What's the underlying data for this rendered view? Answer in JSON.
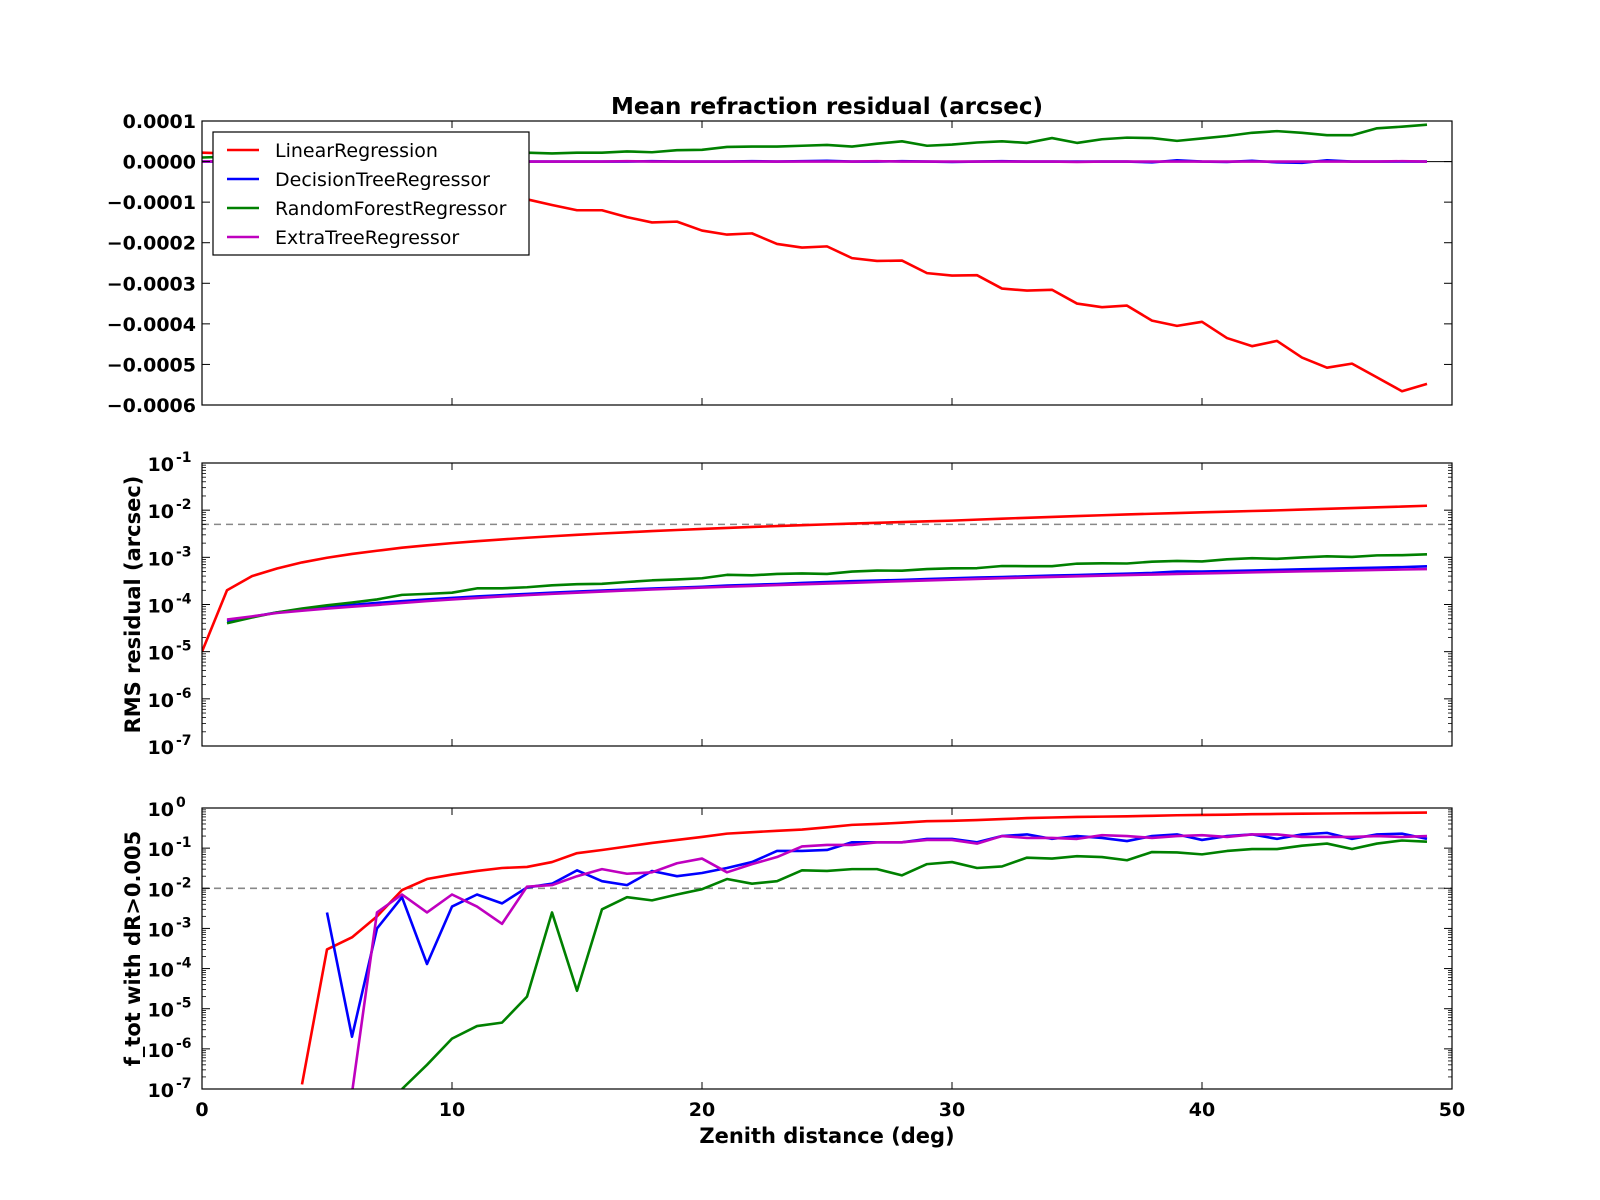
{
  "chart_data": [
    {
      "type": "line",
      "title": "Mean refraction residual (arcsec)",
      "ylabel": "",
      "xlabel": "",
      "yscale": "linear",
      "xlim": [
        0,
        50
      ],
      "ylim": [
        -0.0006,
        0.0001
      ],
      "yticks": [
        "0.0001",
        "0.0000",
        "−0.0001",
        "−0.0002",
        "−0.0003",
        "−0.0004",
        "−0.0005",
        "−0.0006"
      ],
      "ytick_values": [
        0.0001,
        0.0,
        -0.0001,
        -0.0002,
        -0.0003,
        -0.0004,
        -0.0005,
        -0.0006
      ],
      "zero_line": true,
      "legend_position": "upper-left",
      "x": [
        0,
        1,
        2,
        3,
        4,
        5,
        6,
        7,
        8,
        9,
        10,
        11,
        12,
        13,
        14,
        15,
        16,
        17,
        18,
        19,
        20,
        21,
        22,
        23,
        24,
        25,
        26,
        27,
        28,
        29,
        30,
        31,
        32,
        33,
        34,
        35,
        36,
        37,
        38,
        39,
        40,
        41,
        42,
        43,
        44,
        45,
        46,
        47,
        48,
        49
      ],
      "series": [
        {
          "name": "LinearRegression",
          "color": "#ff0000",
          "values": [
            2.2e-05,
            2e-05,
            1.5e-05,
            1e-05,
            0.0,
            -1e-05,
            -2e-05,
            -3e-05,
            -4e-05,
            -5e-05,
            -6e-05,
            -7e-05,
            -8e-05,
            -9.3e-05,
            -0.000107,
            -0.00012,
            -0.00012,
            -0.000137,
            -0.00015,
            -0.000148,
            -0.00017,
            -0.00018,
            -0.000177,
            -0.000203,
            -0.000212,
            -0.000209,
            -0.000238,
            -0.000245,
            -0.000244,
            -0.000275,
            -0.000281,
            -0.00028,
            -0.000313,
            -0.000318,
            -0.000316,
            -0.00035,
            -0.000359,
            -0.000355,
            -0.000392,
            -0.000405,
            -0.000395,
            -0.000435,
            -0.000455,
            -0.000442,
            -0.000483,
            -0.000508,
            -0.000498,
            -0.000532,
            -0.000566,
            -0.000548
          ]
        },
        {
          "name": "DecisionTreeRegressor",
          "color": "#0000ff",
          "values": [
            0.0,
            0.0,
            0.0,
            0.0,
            0.0,
            0.0,
            0.0,
            1e-06,
            0.0,
            0.0,
            0.0,
            1e-06,
            0.0,
            0.0,
            0.0,
            0.0,
            0.0,
            0.0,
            1e-06,
            0.0,
            0.0,
            0.0,
            1e-06,
            0.0,
            1e-06,
            2e-06,
            0.0,
            0.0,
            1e-06,
            0.0,
            -1e-06,
            0.0,
            1e-06,
            0.0,
            0.0,
            0.0,
            0.0,
            0.0,
            -2e-06,
            3e-06,
            0.0,
            -1e-06,
            2e-06,
            -2e-06,
            -3e-06,
            3e-06,
            0.0,
            0.0,
            0.0,
            0.0
          ]
        },
        {
          "name": "RandomForestRegressor",
          "color": "#008000",
          "values": [
            1e-05,
            1.2e-05,
            1.4e-05,
            1.6e-05,
            1.7e-05,
            1.8e-05,
            1.9e-05,
            2e-05,
            2.1e-05,
            2.1e-05,
            2.2e-05,
            2.2e-05,
            2.1e-05,
            2.2e-05,
            2e-05,
            2.2e-05,
            2.2e-05,
            2.5e-05,
            2.3e-05,
            2.8e-05,
            2.9e-05,
            3.6e-05,
            3.7e-05,
            3.7e-05,
            3.9e-05,
            4.1e-05,
            3.7e-05,
            4.4e-05,
            5e-05,
            3.9e-05,
            4.2e-05,
            4.7e-05,
            5e-05,
            4.6e-05,
            5.8e-05,
            4.6e-05,
            5.5e-05,
            5.9e-05,
            5.8e-05,
            5.1e-05,
            5.7e-05,
            6.3e-05,
            7.1e-05,
            7.5e-05,
            7.1e-05,
            6.5e-05,
            6.5e-05,
            8.2e-05,
            8.6e-05,
            9.1e-05
          ]
        },
        {
          "name": "ExtraTreeRegressor",
          "color": "#bf00bf",
          "values": [
            0.0,
            1e-06,
            0.0,
            0.0,
            0.0,
            0.0,
            0.0,
            0.0,
            0.0,
            0.0,
            0.0,
            0.0,
            0.0,
            0.0,
            0.0,
            0.0,
            0.0,
            1e-06,
            0.0,
            0.0,
            0.0,
            0.0,
            0.0,
            0.0,
            0.0,
            0.0,
            0.0,
            1e-06,
            0.0,
            0.0,
            0.0,
            0.0,
            0.0,
            0.0,
            0.0,
            -1e-06,
            0.0,
            0.0,
            0.0,
            0.0,
            0.0,
            0.0,
            0.0,
            0.0,
            0.0,
            0.0,
            0.0,
            0.0,
            1e-06,
            0.0
          ]
        }
      ]
    },
    {
      "type": "line",
      "title": "",
      "ylabel": "RMS residual (arcsec)",
      "xlabel": "",
      "yscale": "log",
      "xlim": [
        0,
        50
      ],
      "ylim_exponents": [
        -7,
        -1
      ],
      "ytick_labels": [
        {
          "base": "10",
          "exp": "-1"
        },
        {
          "base": "10",
          "exp": "-2"
        },
        {
          "base": "10",
          "exp": "-3"
        },
        {
          "base": "10",
          "exp": "-4"
        },
        {
          "base": "10",
          "exp": "-5"
        },
        {
          "base": "10",
          "exp": "-6"
        },
        {
          "base": "10",
          "exp": "-7"
        }
      ],
      "ytick_exponents": [
        -1,
        -2,
        -3,
        -4,
        -5,
        -6,
        -7
      ],
      "hline": {
        "value": 0.005,
        "style": "dashed",
        "color": "#888888"
      },
      "x": [
        0,
        1,
        2,
        3,
        4,
        5,
        6,
        7,
        8,
        9,
        10,
        11,
        12,
        13,
        14,
        15,
        16,
        17,
        18,
        19,
        20,
        21,
        22,
        23,
        24,
        25,
        26,
        27,
        28,
        29,
        30,
        31,
        32,
        33,
        34,
        35,
        36,
        37,
        38,
        39,
        40,
        41,
        42,
        43,
        44,
        45,
        46,
        47,
        48,
        49
      ],
      "series": [
        {
          "name": "LinearRegression",
          "color": "#ff0000",
          "values": [
            1e-05,
            0.0002,
            0.0004,
            0.00058,
            0.00078,
            0.00098,
            0.00118,
            0.00138,
            0.0016,
            0.0018,
            0.002,
            0.0022,
            0.0024,
            0.0026,
            0.0028,
            0.003,
            0.0032,
            0.0034,
            0.0036,
            0.0038,
            0.004,
            0.0042,
            0.0044,
            0.0046,
            0.0048,
            0.005,
            0.0052,
            0.0054,
            0.0056,
            0.0058,
            0.006,
            0.0063,
            0.0066,
            0.0069,
            0.0072,
            0.0075,
            0.0078,
            0.0081,
            0.0084,
            0.0087,
            0.009,
            0.0093,
            0.0096,
            0.0099,
            0.0103,
            0.0107,
            0.0111,
            0.0115,
            0.0119,
            0.0124
          ]
        },
        {
          "name": "DecisionTreeRegressor",
          "color": "#0000ff",
          "values": [
            null,
            4.5e-05,
            5.5e-05,
            6.8e-05,
            7.8e-05,
            8.8e-05,
            9.8e-05,
            0.000108,
            0.000118,
            0.000128,
            0.000138,
            0.000148,
            0.000158,
            0.000168,
            0.000178,
            0.000188,
            0.000198,
            0.000208,
            0.000218,
            0.000228,
            0.000238,
            0.000252,
            0.000262,
            0.000272,
            0.000286,
            0.0003,
            0.000312,
            0.000322,
            0.000332,
            0.000346,
            0.00036,
            0.000372,
            0.000382,
            0.000396,
            0.00041,
            0.000422,
            0.000436,
            0.00045,
            0.000466,
            0.0005,
            0.000498,
            0.000512,
            0.000526,
            0.00054,
            0.000556,
            0.000572,
            0.000588,
            0.000604,
            0.00062,
            0.000645
          ]
        },
        {
          "name": "RandomForestRegressor",
          "color": "#008000",
          "values": [
            null,
            4e-05,
            5.3e-05,
            6.8e-05,
            8.2e-05,
            9.6e-05,
            0.00011,
            0.000128,
            0.00016,
            0.000168,
            0.000178,
            0.00022,
            0.00022,
            0.000232,
            0.000255,
            0.00027,
            0.000275,
            0.0003,
            0.000325,
            0.00034,
            0.00036,
            0.000425,
            0.000415,
            0.000445,
            0.000455,
            0.000445,
            0.0005,
            0.000525,
            0.00052,
            0.000565,
            0.000585,
            0.00059,
            0.000655,
            0.00065,
            0.00065,
            0.000735,
            0.000745,
            0.00074,
            0.00081,
            0.00084,
            0.00082,
            0.00091,
            0.00096,
            0.00093,
            0.000995,
            0.00105,
            0.00102,
            0.0011,
            0.00111,
            0.00116
          ]
        },
        {
          "name": "ExtraTreeRegressor",
          "color": "#bf00bf",
          "values": [
            null,
            4.8e-05,
            5.6e-05,
            6.6e-05,
            7.4e-05,
            8.2e-05,
            9e-05,
            9.8e-05,
            0.000108,
            0.000118,
            0.000128,
            0.000138,
            0.000148,
            0.000158,
            0.000168,
            0.000178,
            0.000188,
            0.000198,
            0.000208,
            0.000218,
            0.000228,
            0.000238,
            0.000248,
            0.000258,
            0.000268,
            0.000278,
            0.000288,
            0.0003,
            0.000312,
            0.000324,
            0.000336,
            0.000348,
            0.00036,
            0.000372,
            0.000384,
            0.000396,
            0.000408,
            0.00042,
            0.000432,
            0.000444,
            0.000456,
            0.000468,
            0.00048,
            0.000492,
            0.000504,
            0.000516,
            0.000528,
            0.00054,
            0.000552,
            0.000564
          ]
        }
      ]
    },
    {
      "type": "line",
      "title": "",
      "ylabel": "f_tot with dR>0.005",
      "xlabel": "Zenith distance (deg)",
      "yscale": "log",
      "xlim": [
        0,
        50
      ],
      "xticks": [
        0,
        10,
        20,
        30,
        40,
        50
      ],
      "xtick_labels": [
        "0",
        "10",
        "20",
        "30",
        "40",
        "50"
      ],
      "ylim_exponents": [
        -7,
        0
      ],
      "ytick_labels": [
        {
          "base": "10",
          "exp": "0"
        },
        {
          "base": "10",
          "exp": "-1"
        },
        {
          "base": "10",
          "exp": "-2"
        },
        {
          "base": "10",
          "exp": "-3"
        },
        {
          "base": "10",
          "exp": "-4"
        },
        {
          "base": "10",
          "exp": "-5"
        },
        {
          "base": "10",
          "exp": "-6"
        },
        {
          "base": "10",
          "exp": "-7"
        }
      ],
      "ytick_exponents": [
        0,
        -1,
        -2,
        -3,
        -4,
        -5,
        -6,
        -7
      ],
      "hline": {
        "value": 0.01,
        "style": "dashed",
        "color": "#888888"
      },
      "x": [
        0,
        1,
        2,
        3,
        4,
        5,
        6,
        7,
        8,
        9,
        10,
        11,
        12,
        13,
        14,
        15,
        16,
        17,
        18,
        19,
        20,
        21,
        22,
        23,
        24,
        25,
        26,
        27,
        28,
        29,
        30,
        31,
        32,
        33,
        34,
        35,
        36,
        37,
        38,
        39,
        40,
        41,
        42,
        43,
        44,
        45,
        46,
        47,
        48,
        49
      ],
      "series": [
        {
          "name": "LinearRegression",
          "color": "#ff0000",
          "values": [
            null,
            null,
            null,
            null,
            1.3e-07,
            0.0003,
            0.0006,
            0.002,
            0.009,
            0.017,
            0.022,
            0.027,
            0.032,
            0.034,
            0.045,
            0.075,
            0.09,
            0.11,
            0.135,
            0.16,
            0.19,
            0.23,
            0.25,
            0.27,
            0.29,
            0.33,
            0.38,
            0.4,
            0.43,
            0.47,
            0.48,
            0.5,
            0.53,
            0.56,
            0.58,
            0.6,
            0.61,
            0.62,
            0.64,
            0.66,
            0.67,
            0.68,
            0.7,
            0.71,
            0.72,
            0.73,
            0.74,
            0.75,
            0.76,
            0.77
          ]
        },
        {
          "name": "DecisionTreeRegressor",
          "color": "#0000ff",
          "values": [
            null,
            null,
            null,
            null,
            null,
            0.0025,
            2e-06,
            0.001,
            0.006,
            0.00013,
            0.0035,
            0.007,
            0.0042,
            0.0105,
            0.013,
            0.028,
            0.015,
            0.012,
            0.027,
            0.02,
            0.024,
            0.032,
            0.045,
            0.085,
            0.085,
            0.09,
            0.14,
            0.14,
            0.14,
            0.17,
            0.17,
            0.14,
            0.2,
            0.22,
            0.17,
            0.2,
            0.18,
            0.15,
            0.2,
            0.22,
            0.16,
            0.2,
            0.22,
            0.17,
            0.22,
            0.24,
            0.17,
            0.22,
            0.23,
            0.17
          ]
        },
        {
          "name": "RandomForestRegressor",
          "color": "#008000",
          "values": [
            null,
            null,
            null,
            null,
            null,
            null,
            null,
            null,
            1e-07,
            4e-07,
            1.8e-06,
            3.7e-06,
            4.5e-06,
            2e-05,
            0.0025,
            2.8e-05,
            0.003,
            0.006,
            0.005,
            0.007,
            0.0095,
            0.017,
            0.013,
            0.015,
            0.028,
            0.027,
            0.03,
            0.03,
            0.021,
            0.04,
            0.045,
            0.032,
            0.035,
            0.058,
            0.055,
            0.063,
            0.06,
            0.05,
            0.08,
            0.078,
            0.07,
            0.085,
            0.095,
            0.095,
            0.115,
            0.13,
            0.095,
            0.13,
            0.155,
            0.145
          ]
        },
        {
          "name": "ExtraTreeRegressor",
          "color": "#bf00bf",
          "values": [
            null,
            null,
            null,
            null,
            null,
            null,
            8e-08,
            0.0025,
            0.007,
            0.0025,
            0.007,
            0.0035,
            0.0013,
            0.011,
            0.012,
            0.02,
            0.03,
            0.023,
            0.025,
            0.042,
            0.055,
            0.025,
            0.04,
            0.06,
            0.11,
            0.12,
            0.12,
            0.14,
            0.14,
            0.16,
            0.16,
            0.13,
            0.2,
            0.18,
            0.18,
            0.17,
            0.21,
            0.2,
            0.18,
            0.2,
            0.21,
            0.19,
            0.22,
            0.22,
            0.19,
            0.19,
            0.19,
            0.2,
            0.19,
            0.2
          ]
        }
      ]
    }
  ]
}
